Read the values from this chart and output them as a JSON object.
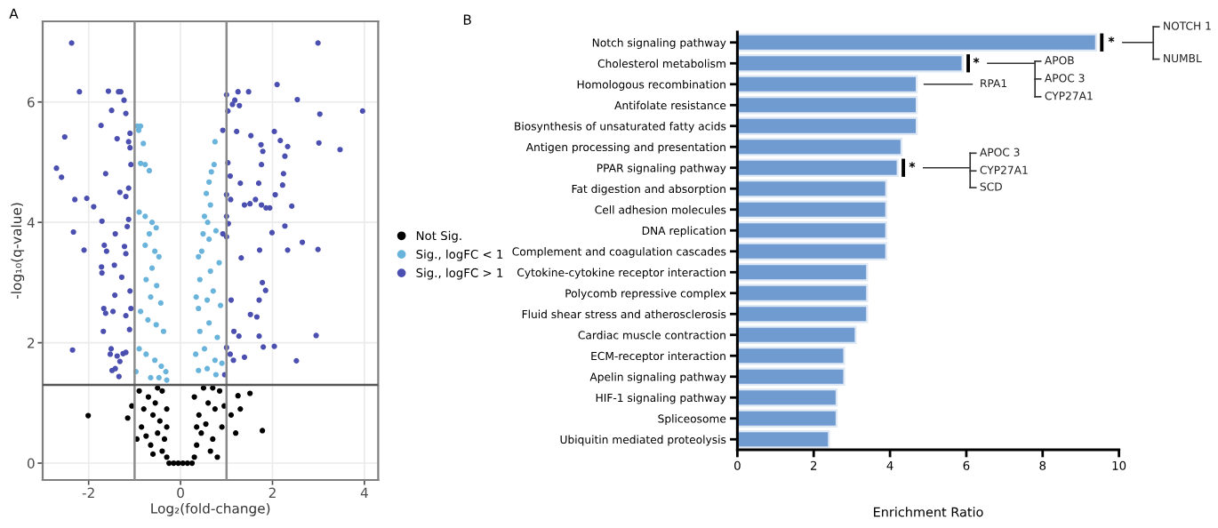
{
  "chart_data": [
    {
      "type": "scatter",
      "title": "A",
      "xlabel": "Log₂(fold-change)",
      "ylabel": "-log₁₀(q-value)",
      "xlim": [
        -3.0,
        4.3
      ],
      "ylim": [
        -0.28,
        7.34
      ],
      "xticks": [
        -2,
        0,
        2,
        4
      ],
      "yticks": [
        0,
        2,
        4,
        6
      ],
      "grid": true,
      "legend": "right",
      "marker": "circle",
      "ref_lines": [
        {
          "axis": "x",
          "value": -1,
          "color": "#8c8c8c"
        },
        {
          "axis": "x",
          "value": 1,
          "color": "#8c8c8c"
        },
        {
          "axis": "y",
          "value": 1.3,
          "color": "#555555"
        }
      ],
      "series": [
        {
          "name": "Not Sig.",
          "color": "#000000",
          "x": [
            -0.25,
            -0.15,
            -0.05,
            0.05,
            0.15,
            0.25,
            -0.3,
            -0.4,
            -0.35,
            -0.5,
            -0.45,
            -0.6,
            -0.55,
            -0.7,
            -0.4,
            -0.8,
            -0.9,
            -0.65,
            -0.85,
            -0.95,
            -0.3,
            -0.3,
            -0.5,
            -0.75,
            -0.6,
            -1.06,
            0.3,
            0.35,
            0.45,
            0.4,
            0.55,
            0.6,
            0.7,
            0.75,
            0.85,
            0.9,
            0.3,
            0.5,
            0.65,
            0.8,
            0.95,
            1.1,
            1.2,
            1.3,
            0.35,
            0.7,
            -2.01,
            -1.15,
            1.78,
            1.51,
            1.25
          ],
          "values": [
            0,
            0,
            0,
            0,
            0,
            0,
            0.1,
            0.2,
            0.4,
            0.5,
            0.7,
            0.8,
            1.0,
            1.1,
            1.2,
            0.9,
            1.2,
            0.3,
            0.6,
            0.4,
            0.9,
            0.6,
            1.25,
            0.45,
            0.15,
            0.95,
            0.1,
            0.3,
            0.5,
            0.8,
            0.65,
            1.0,
            0.4,
            0.9,
            1.2,
            0.6,
            1.1,
            1.25,
            0.2,
            0.1,
            0.95,
            0.8,
            0.5,
            0.9,
            0.6,
            1.25,
            0.79,
            0.75,
            0.54,
            1.16,
            1.12
          ]
        },
        {
          "name": "Sig., logFC < 1",
          "color": "#6ab4dc",
          "x": [
            -0.87,
            -0.91,
            -0.94,
            -0.81,
            -0.87,
            -0.77,
            -0.68,
            -0.9,
            -0.77,
            -0.62,
            -0.53,
            -0.68,
            -0.77,
            -0.56,
            -0.47,
            -0.62,
            -0.75,
            -0.52,
            -0.65,
            -0.43,
            -0.87,
            -0.71,
            -0.53,
            -0.37,
            -0.9,
            -0.75,
            -0.56,
            -0.42,
            -0.32,
            -0.65,
            -0.47,
            -0.3,
            -0.97,
            0.39,
            0.58,
            0.77,
            0.33,
            0.52,
            0.75,
            0.9,
            0.42,
            0.62,
            0.8,
            0.39,
            0.58,
            0.71,
            0.87,
            0.42,
            0.65,
            0.84,
            0.46,
            0.62,
            0.77,
            0.52,
            0.65,
            0.56,
            0.62,
            0.67,
            0.73,
            0.75,
            0.39,
            0.49,
            0.59,
            0.34
          ],
          "values": [
            5.6,
            5.53,
            5.6,
            5.31,
            4.98,
            4.96,
            4.86,
            4.17,
            4.1,
            4.0,
            3.91,
            3.81,
            3.62,
            3.52,
            3.43,
            3.24,
            3.05,
            2.95,
            2.76,
            2.66,
            2.52,
            2.38,
            2.3,
            2.19,
            1.9,
            1.81,
            1.71,
            1.61,
            1.52,
            1.42,
            1.42,
            1.38,
            1.52,
            1.54,
            1.57,
            1.47,
            1.81,
            1.9,
            1.71,
            1.66,
            2.19,
            2.33,
            2.09,
            2.57,
            2.71,
            2.86,
            2.62,
            3.05,
            3.19,
            3.33,
            3.52,
            3.72,
            3.86,
            4.1,
            4.29,
            4.48,
            4.67,
            4.84,
            4.96,
            5.34,
            3.43,
            3.81,
            4.0,
            2.76
          ]
        },
        {
          "name": "Sig., logFC > 1",
          "color": "#4b4fb0",
          "x": [
            -2.37,
            -2.2,
            -1.57,
            -1.35,
            -1.3,
            -1.5,
            -1.23,
            -1.19,
            -1.73,
            -2.52,
            -1.38,
            -1.1,
            -1.13,
            -1.1,
            -2.7,
            -2.59,
            -1.63,
            -1.08,
            -2.3,
            -2.04,
            -1.89,
            -1.13,
            -1.19,
            -1.32,
            -1.71,
            -1.13,
            -1.16,
            -2.33,
            -1.42,
            -2.1,
            -1.61,
            -1.66,
            -1.22,
            -1.19,
            -1.72,
            -1.71,
            -1.44,
            -1.28,
            -1.43,
            -1.1,
            -1.08,
            -1.67,
            -1.63,
            -1.47,
            -1.19,
            -1.68,
            -1.11,
            -1.51,
            -1.53,
            -1.38,
            -1.25,
            -1.19,
            -1.32,
            -1.42,
            -1.34,
            -2.35,
            -1.49,
            2.99,
            2.1,
            1.25,
            1.0,
            1.18,
            1.13,
            1.28,
            1.48,
            2.54,
            1.03,
            3.03,
            3.96,
            0.92,
            1.22,
            2.04,
            1.53,
            1.75,
            1.79,
            2.17,
            2.33,
            2.27,
            3.01,
            3.47,
            1.03,
            1.08,
            1.3,
            1.76,
            1.7,
            2.24,
            2.22,
            2.06,
            1.0,
            1.09,
            1.39,
            1.51,
            1.63,
            1.76,
            1.86,
            1.94,
            2.42,
            1.0,
            1.04,
            2.27,
            1.0,
            0.92,
            1.99,
            2.65,
            2.33,
            1.72,
            1.32,
            2.99,
            1.78,
            1.85,
            1.1,
            1.71,
            1.52,
            1.66,
            1.16,
            1.27,
            1.71,
            2.95,
            1.0,
            1.08,
            1.15,
            1.39,
            1.8,
            2.04,
            2.52,
            0.96
          ],
          "values": [
            6.98,
            6.17,
            6.18,
            6.17,
            6.17,
            5.86,
            6.03,
            5.81,
            5.61,
            5.42,
            5.39,
            5.48,
            5.34,
            5.24,
            4.9,
            4.75,
            4.81,
            4.96,
            4.38,
            4.4,
            4.26,
            4.57,
            4.43,
            4.5,
            4.02,
            4.05,
            3.93,
            3.84,
            3.81,
            3.54,
            3.52,
            3.62,
            3.6,
            3.48,
            3.26,
            3.16,
            3.29,
            3.09,
            2.79,
            2.86,
            2.57,
            2.57,
            2.49,
            2.52,
            2.45,
            2.19,
            2.22,
            1.9,
            1.81,
            1.78,
            1.82,
            1.84,
            1.69,
            1.57,
            1.44,
            1.88,
            1.54,
            6.98,
            6.29,
            6.17,
            6.12,
            6.03,
            5.96,
            5.94,
            6.17,
            6.04,
            5.85,
            5.8,
            5.85,
            5.53,
            5.51,
            5.51,
            5.44,
            5.29,
            5.18,
            5.36,
            5.26,
            5.1,
            5.32,
            5.21,
            4.99,
            4.77,
            4.65,
            4.96,
            4.65,
            4.81,
            4.62,
            4.46,
            4.46,
            4.38,
            4.29,
            4.31,
            4.38,
            4.29,
            4.24,
            4.24,
            4.27,
            4.1,
            3.98,
            3.94,
            3.76,
            3.81,
            3.83,
            3.67,
            3.54,
            3.54,
            3.41,
            3.55,
            3.0,
            2.87,
            2.71,
            2.71,
            2.47,
            2.43,
            2.19,
            2.11,
            2.11,
            2.12,
            1.92,
            1.81,
            1.71,
            1.76,
            1.93,
            1.94,
            1.7,
            1.47
          ]
        }
      ]
    },
    {
      "type": "bar",
      "title": "B",
      "orientation": "horizontal",
      "xlabel": "Enrichment Ratio",
      "xlim": [
        0,
        10
      ],
      "xticks": [
        0,
        2,
        4,
        6,
        8,
        10
      ],
      "grid": false,
      "categories": [
        "Notch signaling pathway",
        "Cholesterol metabolism",
        "Homologous recombination",
        "Antifolate resistance",
        "Biosynthesis of unsaturated fatty acids",
        "Antigen processing and presentation",
        "PPAR signaling pathway",
        "Fat digestion and absorption",
        "Cell adhesion molecules",
        "DNA replication",
        "Complement and coagulation cascades",
        "Cytokine-cytokine receptor interaction",
        "Polycomb repressive complex",
        "Fluid shear stress and atherosclerosis",
        "Cardiac muscle contraction",
        "ECM-receptor interaction",
        "Apelin signaling pathway",
        "HIF-1 signaling pathway",
        "Spliceosome",
        "Ubiquitin mediated proteolysis"
      ],
      "values": [
        9.4,
        5.9,
        4.7,
        4.7,
        4.7,
        4.3,
        4.2,
        3.9,
        3.9,
        3.9,
        3.9,
        3.4,
        3.4,
        3.4,
        3.1,
        2.8,
        2.8,
        2.6,
        2.6,
        2.4
      ],
      "color": "#6f9bd1",
      "annotations": [
        "*",
        "NOTCH 1",
        "NUMBL",
        "*",
        "APOB",
        "APOC 3",
        "CYP27A1",
        "RPA1",
        "*",
        "APOC 3",
        "CYP27A1",
        "SCD"
      ]
    }
  ]
}
